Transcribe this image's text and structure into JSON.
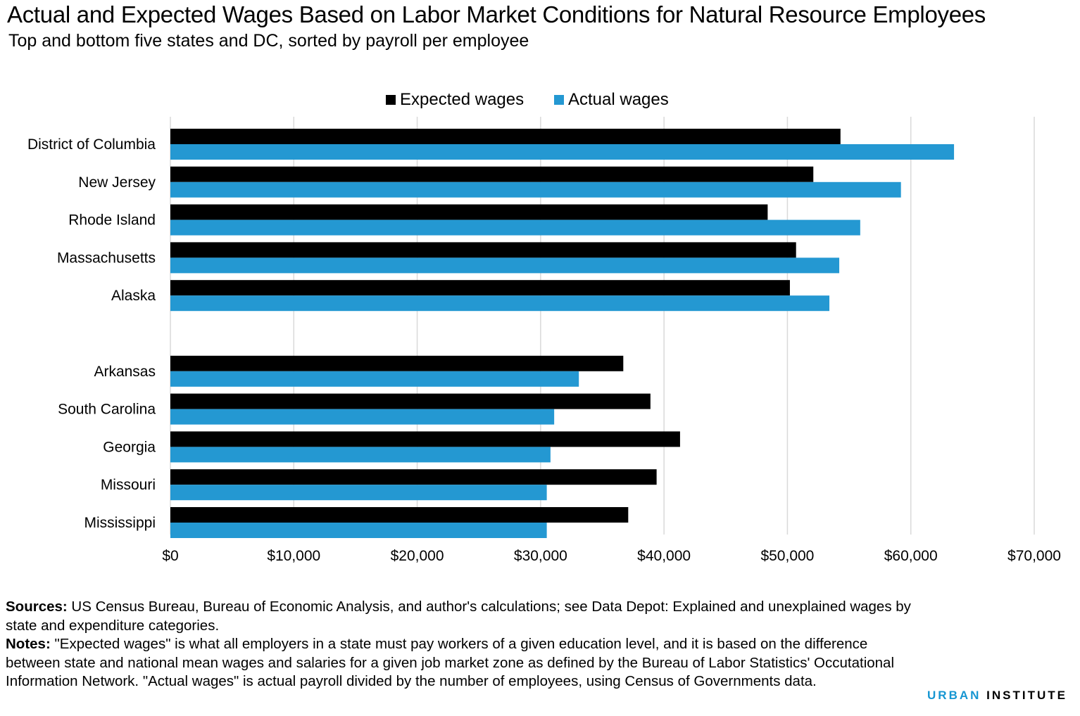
{
  "title": "Actual and Expected Wages Based on Labor Market Conditions for Natural Resource Employees",
  "subtitle": "Top and bottom five states and DC, sorted by payroll per employee",
  "legend": {
    "expected": "Expected wages",
    "actual": "Actual wages"
  },
  "colors": {
    "expected": "#000000",
    "actual": "#2498d2",
    "grid": "#d9d9d9"
  },
  "chart_data": {
    "type": "bar",
    "orientation": "horizontal",
    "categories": [
      "District of Columbia",
      "New Jersey",
      "Rhode Island",
      "Massachusetts",
      "Alaska",
      "",
      "Arkansas",
      "South Carolina",
      "Georgia",
      "Missouri",
      "Mississippi"
    ],
    "series": [
      {
        "name": "Expected wages",
        "values": [
          54300,
          52100,
          48400,
          50700,
          50200,
          null,
          36700,
          38900,
          41300,
          39400,
          37100
        ]
      },
      {
        "name": "Actual wages",
        "values": [
          63500,
          59200,
          55900,
          54200,
          53400,
          null,
          33100,
          31100,
          30800,
          30500,
          30500
        ]
      }
    ],
    "xlim": [
      0,
      70000
    ],
    "xticks": [
      0,
      10000,
      20000,
      30000,
      40000,
      50000,
      60000,
      70000
    ],
    "xtick_labels": [
      "$0",
      "$10,000",
      "$20,000",
      "$30,000",
      "$40,000",
      "$50,000",
      "$60,000",
      "$70,000"
    ],
    "grid": "vertical",
    "legend_position": "top"
  },
  "footnotes": {
    "sources_label": "Sources:",
    "sources_text": " US Census Bureau, Bureau of Economic Analysis, and author's calculations; see Data Depot: Explained and unexplained wages by state and expenditure categories.",
    "notes_label": "Notes:",
    "notes_text": " \"Expected wages\" is what all employers in a state must pay workers of a given education level, and it is based on the difference between state and national mean wages and salaries for a given job market zone as defined by the Bureau of Labor Statistics' Occutational Information Network. \"Actual wages\" is actual payroll divided by the number of employees, using Census of Governments data."
  },
  "brand": {
    "part1": "URBAN",
    "part2": "INSTITUTE"
  }
}
